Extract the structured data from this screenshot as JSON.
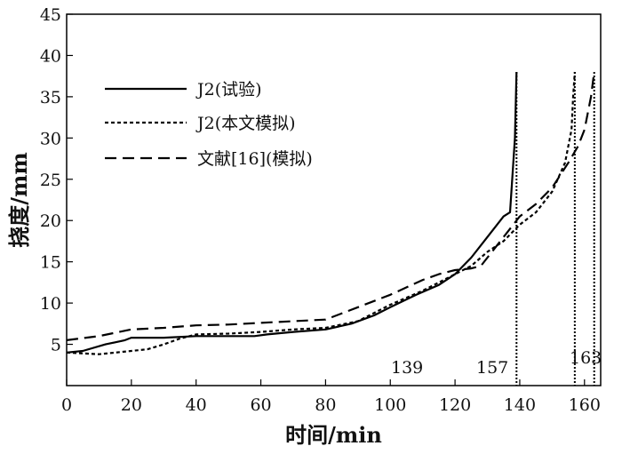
{
  "chart_data": {
    "type": "line",
    "title": "",
    "xlabel": "时间/min",
    "ylabel": "挠度/mm",
    "xlim": [
      0,
      165
    ],
    "ylim": [
      0,
      45
    ],
    "xticks": [
      0,
      20,
      40,
      60,
      80,
      100,
      120,
      140,
      160
    ],
    "yticks": [
      5,
      10,
      15,
      20,
      25,
      30,
      35,
      40,
      45
    ],
    "grid": false,
    "legend_position": "top-left",
    "series": [
      {
        "name": "J2(试验)",
        "style": "solid",
        "color": "#000000",
        "x": [
          0,
          5,
          12,
          18,
          20,
          30,
          40,
          50,
          58,
          62,
          70,
          80,
          88,
          95,
          100,
          108,
          115,
          120,
          125,
          130,
          135,
          137,
          138.5,
          139
        ],
        "y": [
          4.0,
          4.2,
          5.0,
          5.5,
          5.8,
          5.8,
          6.0,
          6.0,
          6.0,
          6.2,
          6.5,
          6.8,
          7.5,
          8.5,
          9.5,
          11.0,
          12.2,
          13.5,
          15.5,
          18.0,
          20.5,
          21.0,
          30.0,
          38.0
        ]
      },
      {
        "name": "J2(本文模拟)",
        "style": "dotted",
        "color": "#000000",
        "x": [
          0,
          10,
          20,
          25,
          30,
          35,
          40,
          50,
          60,
          70,
          80,
          90,
          100,
          110,
          120,
          125,
          130,
          135,
          140,
          145,
          150,
          154,
          156,
          156.5,
          157
        ],
        "y": [
          4.0,
          3.8,
          4.2,
          4.4,
          5.0,
          5.7,
          6.2,
          6.3,
          6.5,
          6.8,
          7.0,
          7.8,
          9.8,
          11.5,
          13.5,
          14.5,
          16.2,
          17.5,
          19.5,
          21.0,
          23.5,
          27.0,
          31.0,
          35.0,
          38.0
        ]
      },
      {
        "name": "文献[16](模拟)",
        "style": "dashed",
        "color": "#000000",
        "x": [
          0,
          10,
          20,
          30,
          40,
          50,
          60,
          70,
          80,
          90,
          100,
          110,
          115,
          120,
          125,
          128,
          130,
          135,
          140,
          145,
          150,
          155,
          158,
          160,
          162,
          163
        ],
        "y": [
          5.5,
          6.0,
          6.8,
          7.0,
          7.3,
          7.4,
          7.6,
          7.8,
          8.0,
          9.5,
          11.0,
          12.8,
          13.5,
          14.0,
          14.2,
          14.5,
          15.5,
          18.0,
          20.5,
          22.0,
          24.0,
          27.0,
          29.0,
          31.0,
          35.0,
          38.0
        ]
      }
    ],
    "annotations": [
      {
        "label": "139",
        "x": 139
      },
      {
        "label": "157",
        "x": 157
      },
      {
        "label": "163",
        "x": 163
      }
    ]
  }
}
